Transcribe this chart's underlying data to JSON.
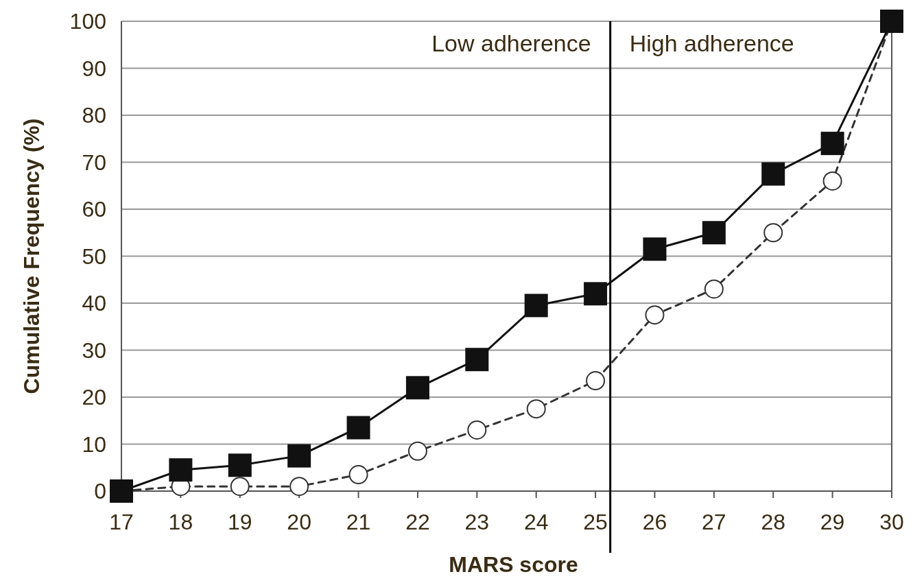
{
  "chart_data": {
    "type": "line",
    "xlabel": "MARS score",
    "ylabel": "Cumulative Frequency (%)",
    "x": [
      17,
      18,
      19,
      20,
      21,
      22,
      23,
      24,
      25,
      26,
      27,
      28,
      29,
      30
    ],
    "series": [
      {
        "color": "#111111",
        "marker": "square",
        "line_style": "solid",
        "values": [
          0,
          4.5,
          5.5,
          7.5,
          13.5,
          22,
          28,
          39.5,
          42,
          51.5,
          55,
          67.5,
          74,
          100
        ]
      },
      {
        "color": "#333333",
        "marker": "circle",
        "line_style": "dashed",
        "values": [
          0,
          1,
          1,
          1,
          3.5,
          8.5,
          13,
          17.5,
          23.5,
          37.5,
          43,
          55,
          66,
          100
        ]
      }
    ],
    "xlim": [
      17,
      30
    ],
    "xticks": [
      17,
      18,
      19,
      20,
      21,
      22,
      23,
      24,
      25,
      26,
      27,
      28,
      29,
      30
    ],
    "ylim": [
      0,
      100
    ],
    "yticks": [
      0,
      10,
      20,
      30,
      40,
      50,
      60,
      70,
      80,
      90,
      100
    ],
    "grid": "y",
    "ref_lines": [
      {
        "axis": "x",
        "value": 25.25,
        "color": "#000000"
      }
    ],
    "annotations": [
      "Low adherence",
      "High adherence"
    ]
  }
}
